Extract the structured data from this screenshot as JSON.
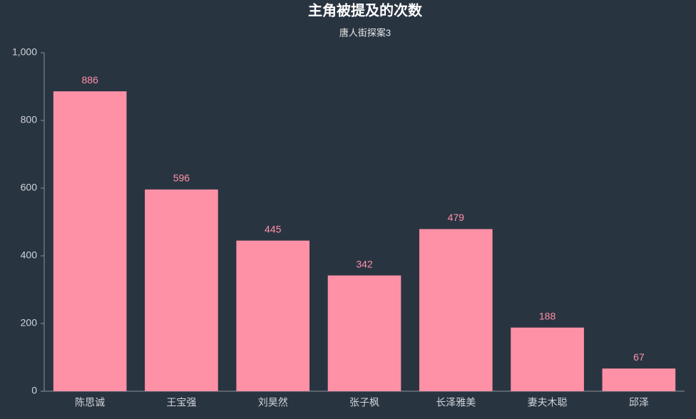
{
  "chart_data": {
    "type": "bar",
    "title": "主角被提及的次数",
    "subtitle": "唐人街探案3",
    "categories": [
      "陈思诚",
      "王宝强",
      "刘昊然",
      "张子枫",
      "长泽雅美",
      "妻夫木聪",
      "邱泽"
    ],
    "values": [
      886,
      596,
      445,
      342,
      479,
      188,
      67
    ],
    "color": "#ff91a7",
    "ylim": [
      0,
      1000
    ],
    "yticks": [
      0,
      200,
      400,
      600,
      800,
      {
        "value": 1000,
        "label": "1,000"
      }
    ],
    "grid": false
  }
}
